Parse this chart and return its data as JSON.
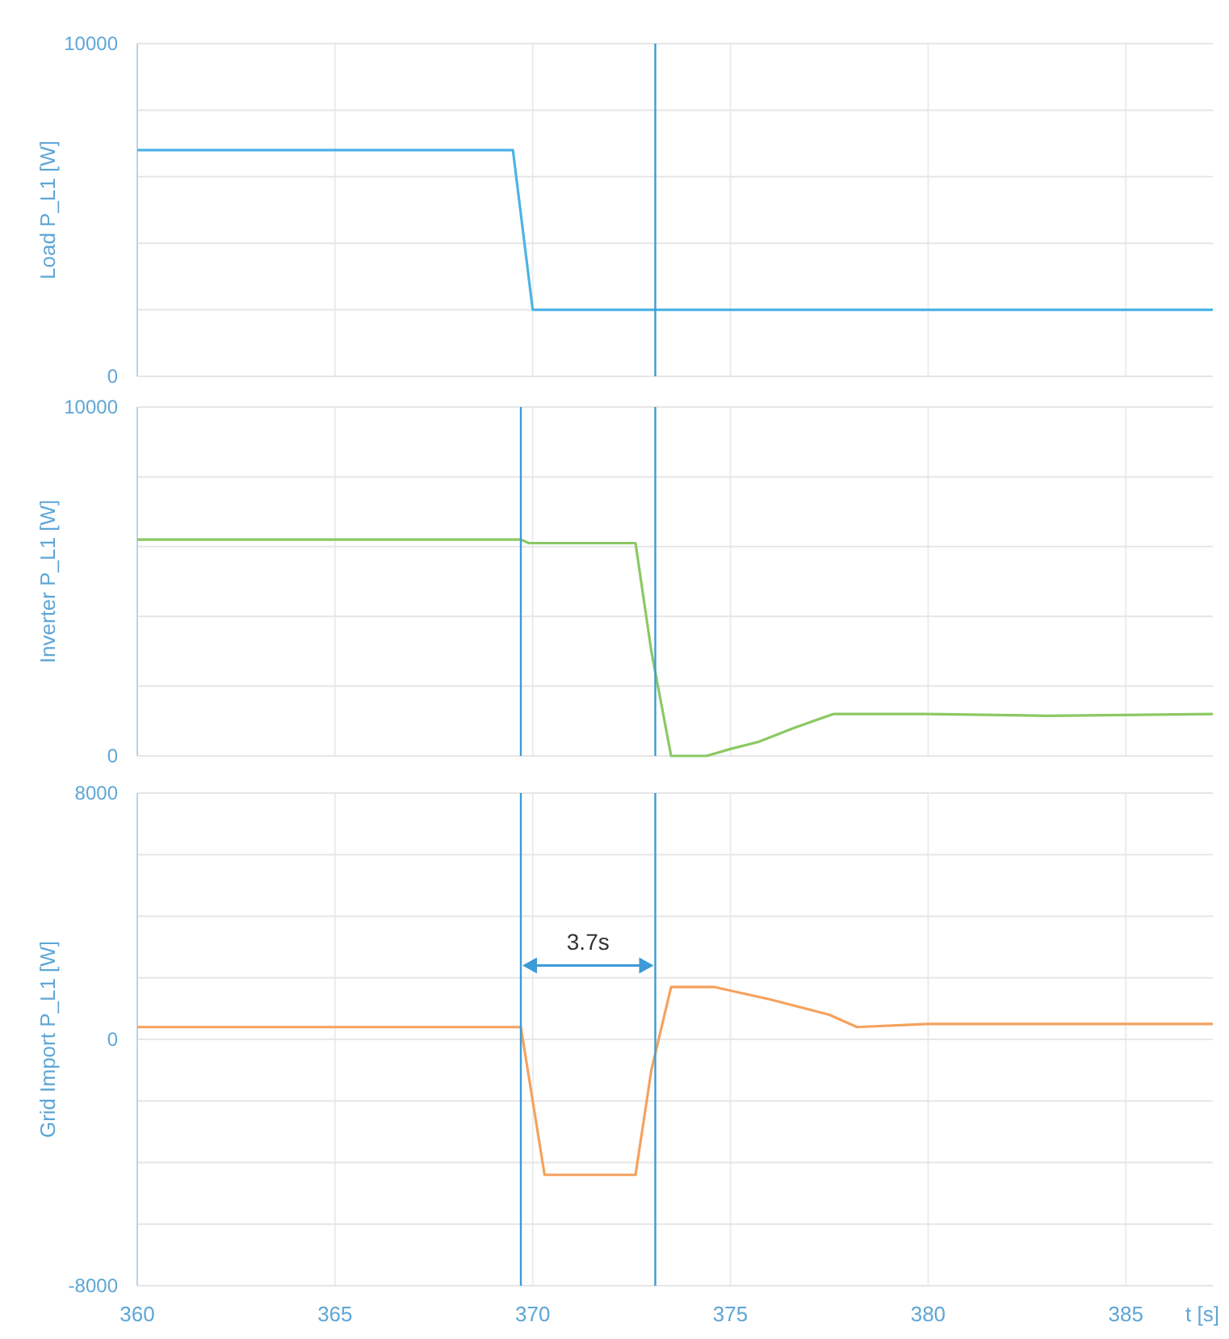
{
  "chart_data": [
    {
      "type": "line",
      "ylabel": "Load P_L1 [W]",
      "xlim": [
        360,
        387.2
      ],
      "xticks": [
        360,
        365,
        370,
        375,
        380,
        385
      ],
      "ylim": [
        0,
        10000
      ],
      "yticks": [
        0,
        {
          "value": 2000,
          "label": null
        },
        {
          "value": 4000,
          "label": null
        },
        {
          "value": 6000,
          "label": null
        },
        {
          "value": 8000,
          "label": null
        },
        10000
      ],
      "grid": true,
      "tick_labels": "y",
      "series": [
        {
          "color": "#4db3e6",
          "x": [
            360,
            369.5,
            370.0,
            387.2
          ],
          "values": [
            6800,
            6800,
            2000,
            2000
          ]
        }
      ],
      "ref_lines": [
        {
          "axis": "x",
          "value": 373.1,
          "color": "#3d9bd6"
        }
      ]
    },
    {
      "type": "line",
      "ylabel": "Inverter P_L1 [W]",
      "xlim": [
        360,
        387.2
      ],
      "xticks": [
        360,
        365,
        370,
        375,
        380,
        385
      ],
      "ylim": [
        0,
        10000
      ],
      "yticks": [
        0,
        {
          "value": 2000,
          "label": null
        },
        {
          "value": 4000,
          "label": null
        },
        {
          "value": 6000,
          "label": null
        },
        {
          "value": 8000,
          "label": null
        },
        10000
      ],
      "grid": true,
      "tick_labels": "y",
      "series": [
        {
          "color": "#8cc863",
          "x": [
            360,
            369.7,
            369.9,
            372.6,
            373.0,
            373.5,
            374.4,
            375.0,
            375.7,
            376.6,
            377.6,
            380,
            383,
            387.2
          ],
          "values": [
            6200,
            6200,
            6100,
            6100,
            3000,
            0,
            0,
            200,
            400,
            800,
            1200,
            1200,
            1150,
            1200
          ]
        }
      ],
      "ref_lines": [
        {
          "axis": "x",
          "value": 369.7,
          "color": "#3d9bd6"
        },
        {
          "axis": "x",
          "value": 373.1,
          "color": "#3d9bd6"
        }
      ]
    },
    {
      "type": "line",
      "ylabel": "Grid Import P_L1 [W]",
      "xlabel": "t [s]",
      "xlim": [
        360,
        387.2
      ],
      "xticks": [
        360,
        365,
        370,
        375,
        380,
        385
      ],
      "ylim": [
        -8000,
        8000
      ],
      "yticks": [
        -8000,
        {
          "value": -6000,
          "label": null
        },
        {
          "value": -4000,
          "label": null
        },
        {
          "value": -2000,
          "label": null
        },
        0,
        {
          "value": 2000,
          "label": null
        },
        {
          "value": 4000,
          "label": null
        },
        {
          "value": 6000,
          "label": null
        },
        8000
      ],
      "grid": true,
      "series": [
        {
          "color": "#f5a25d",
          "x": [
            360,
            369.7,
            370.3,
            372.6,
            373.0,
            373.5,
            374.6,
            376,
            377.5,
            378.2,
            380,
            387.2
          ],
          "values": [
            400,
            400,
            -4400,
            -4400,
            -1000,
            1700,
            1700,
            1300,
            800,
            400,
            500,
            500
          ]
        }
      ],
      "ref_lines": [
        {
          "axis": "x",
          "value": 369.7,
          "color": "#3d9bd6"
        },
        {
          "axis": "x",
          "value": 373.1,
          "color": "#3d9bd6"
        }
      ],
      "annotations": [
        "3.7s"
      ]
    }
  ]
}
